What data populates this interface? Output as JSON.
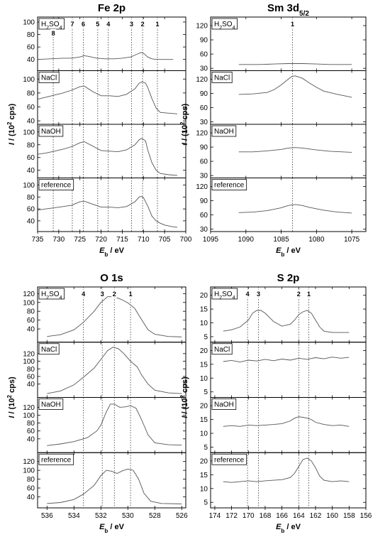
{
  "chart_data": [
    {
      "type": "line",
      "title": "Fe 2p",
      "title_parts": {
        "main": "Fe 2p",
        "sub": ""
      },
      "xlabel": {
        "italic": "E",
        "sub": "b",
        "rest": " / eV"
      },
      "ylabel": {
        "italic": "I",
        "rest": " / (10",
        "sup": "2",
        "end": " cps)"
      },
      "xlim": [
        735,
        700
      ],
      "xticks": [
        735,
        730,
        725,
        720,
        715,
        710,
        705,
        700
      ],
      "peaks": [
        {
          "label": "1",
          "x": 706.7
        },
        {
          "label": "2",
          "x": 710.2
        },
        {
          "label": "3",
          "x": 712.8
        },
        {
          "label": "4",
          "x": 718.3
        },
        {
          "label": "5",
          "x": 720.8
        },
        {
          "label": "6",
          "x": 724.2
        },
        {
          "label": "7",
          "x": 726.8
        },
        {
          "label": "8",
          "x": 731.3
        }
      ],
      "panels": [
        {
          "label_main": "H",
          "label_sub": "2",
          "label_rest": "SO",
          "label_sub2": "4",
          "ylim": [
            22,
            108
          ],
          "yticks": [
            40,
            60,
            80,
            100
          ],
          "x": [
            735,
            732,
            729,
            727,
            725,
            724,
            723,
            721,
            719,
            717,
            715,
            713,
            712,
            711,
            710.5,
            710,
            709,
            708,
            707,
            705,
            703
          ],
          "y": [
            40,
            41,
            42,
            42,
            44,
            46,
            45,
            42,
            41,
            41,
            42,
            44,
            47,
            50,
            51,
            50,
            44,
            41,
            40,
            40,
            40
          ]
        },
        {
          "label_main": "NaCl",
          "label_sub": "",
          "label_rest": "",
          "label_sub2": "",
          "ylim": [
            35,
            112
          ],
          "yticks": [
            40,
            60,
            80,
            100
          ],
          "x": [
            735,
            733,
            731,
            729,
            727,
            725,
            724,
            722,
            720,
            718,
            716,
            714,
            712,
            711,
            710.3,
            709.5,
            709,
            708,
            707,
            706,
            704,
            702
          ],
          "y": [
            71,
            74,
            77,
            80,
            84,
            89,
            90,
            82,
            76,
            76,
            75,
            78,
            86,
            94,
            96,
            94,
            88,
            72,
            58,
            52,
            51,
            50
          ]
        },
        {
          "label_main": "NaOH",
          "label_sub": "",
          "label_rest": "",
          "label_sub2": "",
          "ylim": [
            28,
            112
          ],
          "yticks": [
            40,
            60,
            80,
            100
          ],
          "x": [
            735,
            733,
            731,
            729,
            727,
            725,
            724,
            722,
            720,
            718,
            716,
            714,
            712,
            711,
            710.4,
            709.5,
            709,
            708,
            707,
            706,
            704,
            702
          ],
          "y": [
            65,
            67,
            70,
            73,
            77,
            83,
            85,
            78,
            71,
            70,
            69,
            72,
            80,
            88,
            90,
            86,
            72,
            52,
            40,
            35,
            33,
            32
          ]
        },
        {
          "label_main": "reference",
          "label_sub": "",
          "label_rest": "",
          "label_sub2": "",
          "ylim": [
            22,
            112
          ],
          "yticks": [
            40,
            60,
            80,
            100
          ],
          "x": [
            735,
            733,
            731,
            729,
            727,
            725,
            724,
            722,
            720,
            718,
            716,
            714,
            712,
            711,
            710.5,
            710,
            709,
            708,
            707,
            706,
            705,
            703,
            702
          ],
          "y": [
            58,
            60,
            62,
            64,
            66,
            72,
            73,
            68,
            63,
            63,
            62,
            64,
            72,
            80,
            81,
            79,
            65,
            48,
            40,
            36,
            33,
            30,
            29
          ]
        }
      ]
    },
    {
      "type": "line",
      "title": "Sm 3d5/2",
      "title_parts": {
        "main": "Sm 3d",
        "sub": "5/2"
      },
      "xlabel": {
        "italic": "E",
        "sub": "b",
        "rest": " / eV"
      },
      "ylabel": {
        "italic": "I",
        "rest": " / (10",
        "sup": "2",
        "end": " cps)"
      },
      "xlim": [
        1095,
        1073
      ],
      "xticks": [
        1095,
        1090,
        1085,
        1080,
        1075
      ],
      "peaks": [
        {
          "label": "1",
          "x": 1083.4
        }
      ],
      "panels": [
        {
          "label_main": "H",
          "label_sub": "2",
          "label_rest": "SO",
          "label_sub2": "4",
          "ylim": [
            25,
            138
          ],
          "yticks": [
            30,
            60,
            90,
            120
          ],
          "x": [
            1091,
            1088,
            1086,
            1084,
            1083,
            1082,
            1080,
            1078,
            1075
          ],
          "y": [
            38,
            38,
            39,
            40,
            40,
            40,
            39,
            38,
            38
          ]
        },
        {
          "label_main": "NaCl",
          "label_sub": "",
          "label_rest": "",
          "label_sub2": "",
          "ylim": [
            25,
            138
          ],
          "yticks": [
            30,
            60,
            90,
            120
          ],
          "x": [
            1091,
            1089,
            1087,
            1086,
            1085,
            1084,
            1083.5,
            1083,
            1082,
            1081,
            1080,
            1079,
            1077,
            1075
          ],
          "y": [
            88,
            89,
            92,
            98,
            108,
            120,
            126,
            127,
            122,
            112,
            103,
            95,
            88,
            82
          ]
        },
        {
          "label_main": "NaOH",
          "label_sub": "",
          "label_rest": "",
          "label_sub2": "",
          "ylim": [
            25,
            138
          ],
          "yticks": [
            30,
            60,
            90,
            120
          ],
          "x": [
            1091,
            1089,
            1087,
            1085,
            1084,
            1083,
            1082,
            1080,
            1078,
            1075
          ],
          "y": [
            80,
            80,
            82,
            85,
            88,
            89,
            88,
            84,
            81,
            79
          ]
        },
        {
          "label_main": "reference",
          "label_sub": "",
          "label_rest": "",
          "label_sub2": "",
          "ylim": [
            25,
            138
          ],
          "yticks": [
            30,
            60,
            90,
            120
          ],
          "x": [
            1091,
            1089,
            1087,
            1085,
            1084,
            1083,
            1082,
            1081,
            1079,
            1077,
            1075
          ],
          "y": [
            65,
            66,
            69,
            75,
            80,
            82,
            80,
            76,
            70,
            66,
            64
          ]
        }
      ]
    },
    {
      "type": "line",
      "title": "O 1s",
      "title_parts": {
        "main": "O 1s",
        "sub": ""
      },
      "xlabel": {
        "italic": "E",
        "sub": "b",
        "rest": " / eV"
      },
      "ylabel": {
        "italic": "I",
        "rest": " / (10",
        "sup": "2",
        "end": " cps)"
      },
      "xlim": [
        536.7,
        525.7
      ],
      "xticks": [
        536,
        534,
        532,
        530,
        528,
        526
      ],
      "peaks": [
        {
          "label": "1",
          "x": 529.8
        },
        {
          "label": "2",
          "x": 531.0
        },
        {
          "label": "3",
          "x": 531.9
        },
        {
          "label": "4",
          "x": 533.3
        }
      ],
      "panels": [
        {
          "label_main": "H",
          "label_sub": "2",
          "label_rest": "SO",
          "label_sub2": "4",
          "ylim": [
            10,
            135
          ],
          "yticks": [
            40,
            60,
            80,
            100,
            120
          ],
          "x": [
            536,
            535,
            534,
            533.3,
            532.5,
            532,
            531.5,
            531,
            530.5,
            530,
            529.5,
            529,
            528.5,
            528,
            527,
            526
          ],
          "y": [
            23,
            27,
            38,
            55,
            80,
            100,
            113,
            113,
            107,
            99,
            87,
            62,
            38,
            28,
            23,
            22
          ]
        },
        {
          "label_main": "NaCl",
          "label_sub": "",
          "label_rest": "",
          "label_sub2": "",
          "ylim": [
            5,
            150
          ],
          "yticks": [
            40,
            60,
            80,
            100,
            120
          ],
          "x": [
            536,
            535,
            534,
            533.3,
            532.5,
            532,
            531.5,
            531.1,
            530.7,
            530.3,
            529.8,
            529.3,
            529,
            528.5,
            528,
            527,
            526
          ],
          "y": [
            15,
            22,
            38,
            58,
            82,
            105,
            128,
            137,
            133,
            120,
            100,
            85,
            65,
            40,
            24,
            17,
            15
          ]
        },
        {
          "label_main": "NaOH",
          "label_sub": "",
          "label_rest": "",
          "label_sub2": "",
          "ylim": [
            5,
            145
          ],
          "yticks": [
            40,
            60,
            80,
            100,
            120
          ],
          "x": [
            536,
            535,
            534,
            533,
            532.3,
            532,
            531.6,
            531.3,
            531,
            530.6,
            530.2,
            529.8,
            529.4,
            529,
            528.5,
            528,
            527,
            526
          ],
          "y": [
            23,
            27,
            33,
            43,
            60,
            75,
            108,
            128,
            128,
            120,
            121,
            124,
            118,
            90,
            50,
            30,
            25,
            24
          ]
        },
        {
          "label_main": "reference",
          "label_sub": "",
          "label_rest": "",
          "label_sub2": "",
          "ylim": [
            15,
            140
          ],
          "yticks": [
            40,
            60,
            80,
            100,
            120
          ],
          "x": [
            536,
            535,
            534,
            533.3,
            532.5,
            532,
            531.6,
            531.2,
            530.8,
            530.4,
            530,
            529.6,
            529.2,
            528.8,
            528.3,
            527.5,
            526
          ],
          "y": [
            25,
            27,
            34,
            46,
            66,
            88,
            100,
            98,
            93,
            99,
            103,
            100,
            80,
            48,
            30,
            25,
            24
          ]
        }
      ]
    },
    {
      "type": "line",
      "title": "S 2p",
      "title_parts": {
        "main": "S 2p",
        "sub": ""
      },
      "xlabel": {
        "italic": "E",
        "sub": "b",
        "rest": " / eV"
      },
      "ylabel": {
        "italic": "I",
        "rest": " / (10",
        "sup": "2",
        "end": " cps)"
      },
      "xlim": [
        174.5,
        156
      ],
      "xticks": [
        174,
        172,
        170,
        168,
        166,
        164,
        162,
        160,
        158,
        156
      ],
      "peaks": [
        {
          "label": "1",
          "x": 162.8
        },
        {
          "label": "2",
          "x": 164.0
        },
        {
          "label": "3",
          "x": 168.8
        },
        {
          "label": "4",
          "x": 170.1
        }
      ],
      "panels": [
        {
          "label_main": "H",
          "label_sub": "2",
          "label_rest": "SO",
          "label_sub2": "4",
          "ylim": [
            3,
            23
          ],
          "yticks": [
            5,
            10,
            15,
            20
          ],
          "x": [
            173,
            172,
            171,
            170,
            169.5,
            169,
            168.5,
            168,
            167.5,
            167,
            166,
            165,
            164.5,
            164,
            163.5,
            163,
            162.5,
            162,
            161.5,
            161,
            160,
            159,
            158
          ],
          "y": [
            7,
            7.5,
            8.5,
            11,
            13.5,
            14.5,
            14.5,
            13.5,
            12,
            10.5,
            8.8,
            9.5,
            11,
            13,
            14,
            14.5,
            13.5,
            11,
            8.5,
            7,
            6.5,
            6.5,
            6.5
          ]
        },
        {
          "label_main": "NaCl",
          "label_sub": "",
          "label_rest": "",
          "label_sub2": "",
          "ylim": [
            3,
            23
          ],
          "yticks": [
            5,
            10,
            15,
            20
          ],
          "x": [
            173,
            172,
            171,
            170,
            169,
            168,
            167,
            166,
            165,
            164,
            163,
            162,
            161,
            160,
            159,
            158
          ],
          "y": [
            16,
            16.4,
            15.8,
            16.5,
            16.2,
            16.8,
            16.3,
            16.9,
            16.5,
            17.2,
            16.8,
            17.4,
            17,
            17.6,
            17.2,
            17.5
          ]
        },
        {
          "label_main": "NaOH",
          "label_sub": "",
          "label_rest": "",
          "label_sub2": "",
          "ylim": [
            3,
            23
          ],
          "yticks": [
            5,
            10,
            15,
            20
          ],
          "x": [
            173,
            172,
            171,
            170,
            169,
            168,
            167,
            166,
            165,
            164.5,
            164,
            163.5,
            163,
            162.5,
            162,
            161,
            160,
            159,
            158
          ],
          "y": [
            12.5,
            12.8,
            12.5,
            13,
            12.8,
            13,
            13.2,
            13.5,
            14.5,
            15.5,
            16,
            15.8,
            15.5,
            15,
            14,
            13.2,
            12.8,
            13,
            12.5
          ]
        },
        {
          "label_main": "reference",
          "label_sub": "",
          "label_rest": "",
          "label_sub2": "",
          "ylim": [
            3,
            23
          ],
          "yticks": [
            5,
            10,
            15,
            20
          ],
          "x": [
            173,
            172,
            171,
            170,
            169,
            168,
            167,
            166,
            165,
            164.5,
            164,
            163.5,
            163,
            162.5,
            162,
            161.5,
            161,
            160,
            159,
            158
          ],
          "y": [
            12.5,
            12.2,
            12.5,
            12.8,
            12.5,
            12.8,
            13,
            13.2,
            14,
            15.5,
            18,
            20.5,
            21,
            20,
            17.5,
            14.5,
            13,
            12.5,
            12.8,
            12.5
          ]
        }
      ]
    }
  ]
}
